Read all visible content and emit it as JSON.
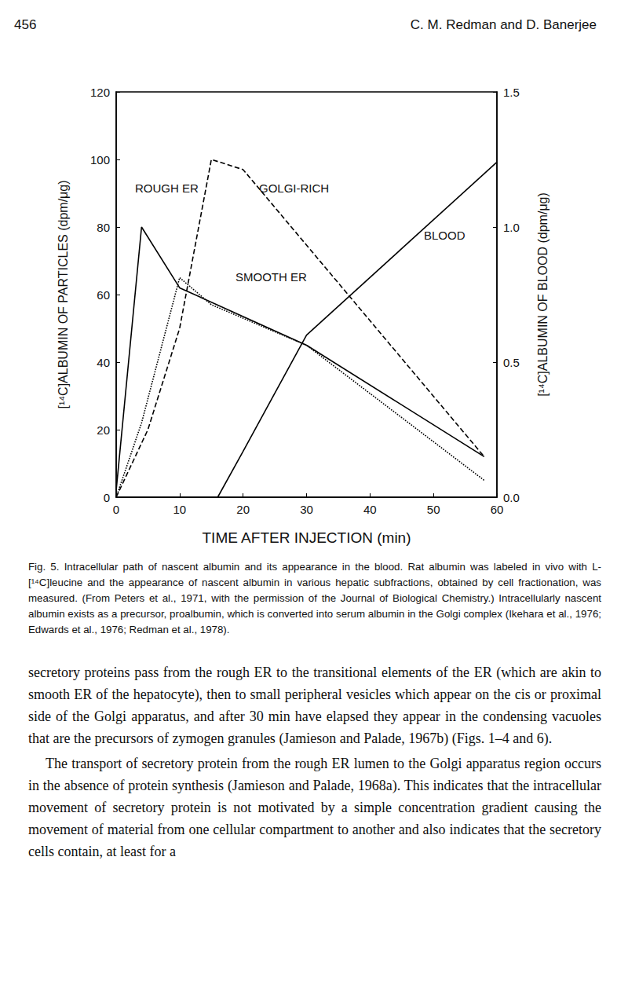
{
  "header": {
    "page": "456",
    "authors": "C. M. Redman and D. Banerjee"
  },
  "chart_data": {
    "type": "line",
    "x_label": "TIME AFTER INJECTION (min)",
    "y_label": "[¹⁴C]ALBUMIN OF PARTICLES (dpm/μg)",
    "y2_label": "[¹⁴C]ALBUMIN OF BLOOD (dpm/μg)",
    "xlim": [
      0,
      60
    ],
    "xticks": [
      0,
      10,
      20,
      30,
      40,
      50,
      60
    ],
    "ylim": [
      0,
      120
    ],
    "yticks": [
      0,
      20,
      40,
      60,
      80,
      100,
      120
    ],
    "y2lim": [
      0,
      1.5
    ],
    "y2ticks": [
      {
        "value": 0,
        "label": "0.0"
      },
      {
        "value": 0.5,
        "label": "0.5"
      },
      {
        "value": 1,
        "label": "1.0"
      },
      {
        "value": 1.5,
        "label": "1.5"
      }
    ],
    "grid": false,
    "series": [
      {
        "name": "ROUGH ER",
        "color": "#000000",
        "line_style": "solid",
        "x": [
          0,
          4,
          10,
          30,
          58
        ],
        "values": [
          2,
          80,
          62,
          45,
          12
        ]
      },
      {
        "name": "SMOOTH ER",
        "color": "#000000",
        "line_style": "dotted",
        "x": [
          0,
          4,
          10,
          15,
          30,
          58
        ],
        "values": [
          0,
          22,
          65,
          57,
          45,
          5
        ]
      },
      {
        "name": "GOLGI-RICH",
        "color": "#000000",
        "line_style": "dashed",
        "x": [
          0,
          5,
          10,
          15,
          20,
          58
        ],
        "values": [
          0,
          20,
          50,
          100,
          97,
          12
        ]
      },
      {
        "name": "BLOOD",
        "color": "#000000",
        "line_style": "solid",
        "axis": "y2",
        "x": [
          0,
          5,
          10,
          16,
          20,
          30,
          60
        ],
        "values": [
          0,
          0,
          0,
          0,
          0.17,
          0.6,
          1.24
        ]
      }
    ]
  },
  "caption": "Fig. 5. Intracellular path of nascent albumin and its appearance in the blood. Rat albumin was labeled in vivo with L-[¹⁴C]leucine and the appearance of nascent albumin in various hepatic subfractions, obtained by cell fractionation, was measured. (From Peters et al., 1971, with the permission of the Journal of Biological Chemistry.) Intracellularly nascent albumin exists as a precursor, proalbumin, which is converted into serum albumin in the Golgi complex (Ikehara et al., 1976; Edwards et al., 1976; Redman et al., 1978).",
  "body": [
    "secretory proteins pass from the rough ER to the transitional elements of the ER (which are akin to smooth ER of the hepatocyte), then to small peripheral vesicles which appear on the cis or proximal side of the Golgi apparatus, and after 30 min have elapsed they appear in the condensing vacuoles that are the precursors of zymogen granules (Jamieson and Palade, 1967b) (Figs. 1–4 and 6).",
    "The transport of secretory protein from the rough ER lumen to the Golgi apparatus region occurs in the absence of protein synthesis (Jamieson and Palade, 1968a). This indicates that the intracellular movement of secretory protein is not motivated by a simple concentration gradient causing the movement of material from one cellular compartment to another and also indicates that the secretory cells contain, at least for a"
  ]
}
